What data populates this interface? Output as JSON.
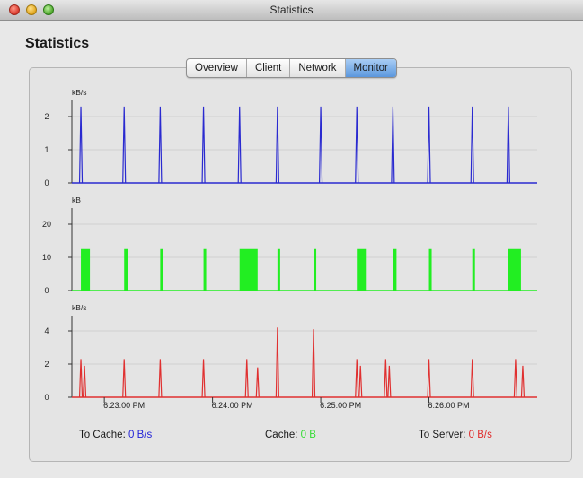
{
  "window": {
    "title": "Statistics"
  },
  "heading": "Statistics",
  "tabs": [
    {
      "label": "Overview",
      "active": false
    },
    {
      "label": "Client",
      "active": false
    },
    {
      "label": "Network",
      "active": false
    },
    {
      "label": "Monitor",
      "active": true
    }
  ],
  "colors": {
    "to_cache": "#2a2ad0",
    "cache": "#22ee22",
    "to_server": "#e03030",
    "tab_active": "#5b97dd"
  },
  "graphs": {
    "upper": {
      "unit": "kB/s",
      "ticks": [
        "0",
        "1",
        "2"
      ],
      "tick_values": [
        0,
        1,
        2
      ],
      "ymax": 2.6,
      "spikes": [
        {
          "t": "6:22:47 PM",
          "value": 2.3
        },
        {
          "t": "6:23:11 PM",
          "value": 2.3
        },
        {
          "t": "6:23:31 PM",
          "value": 2.3
        },
        {
          "t": "6:23:55 PM",
          "value": 2.3
        },
        {
          "t": "6:24:15 PM",
          "value": 2.3
        },
        {
          "t": "6:24:36 PM",
          "value": 2.3
        },
        {
          "t": "6:25:00 PM",
          "value": 2.3
        },
        {
          "t": "6:25:20 PM",
          "value": 2.3
        },
        {
          "t": "6:25:40 PM",
          "value": 2.3
        },
        {
          "t": "6:26:00 PM",
          "value": 2.3
        },
        {
          "t": "6:26:24 PM",
          "value": 2.3
        },
        {
          "t": "6:26:44 PM",
          "value": 2.3
        }
      ]
    },
    "middle": {
      "unit": "kB",
      "ticks": [
        "0",
        "10",
        "20"
      ],
      "tick_values": [
        0,
        10,
        20
      ],
      "ymax": 24,
      "blocks": [
        {
          "start": "6:22:47 PM",
          "end": "6:22:52 PM",
          "value": 12.5
        },
        {
          "start": "6:23:11 PM",
          "end": "6:23:13 PM",
          "value": 12.5
        },
        {
          "start": "6:23:31 PM",
          "end": "6:23:32 PM",
          "value": 12.5
        },
        {
          "start": "6:23:55 PM",
          "end": "6:23:56 PM",
          "value": 12.5
        },
        {
          "start": "6:24:15 PM",
          "end": "6:24:25 PM",
          "value": 12.5
        },
        {
          "start": "6:24:36 PM",
          "end": "6:24:37 PM",
          "value": 12.5
        },
        {
          "start": "6:24:56 PM",
          "end": "6:24:57 PM",
          "value": 12.5
        },
        {
          "start": "6:25:20 PM",
          "end": "6:25:25 PM",
          "value": 12.5
        },
        {
          "start": "6:25:40 PM",
          "end": "6:25:42 PM",
          "value": 12.5
        },
        {
          "start": "6:26:00 PM",
          "end": "6:26:01 PM",
          "value": 12.5
        },
        {
          "start": "6:26:24 PM",
          "end": "6:26:25 PM",
          "value": 12.5
        },
        {
          "start": "6:26:44 PM",
          "end": "6:26:51 PM",
          "value": 12.5
        }
      ]
    },
    "lower": {
      "unit": "kB/s",
      "ticks": [
        "0",
        "2",
        "4"
      ],
      "tick_values": [
        0,
        2,
        4
      ],
      "ymax": 5,
      "spikes": [
        {
          "t": "6:22:47 PM",
          "value": 2.3
        },
        {
          "t": "6:22:49 PM",
          "value": 1.9
        },
        {
          "t": "6:23:11 PM",
          "value": 2.3
        },
        {
          "t": "6:23:31 PM",
          "value": 2.3
        },
        {
          "t": "6:23:55 PM",
          "value": 2.3
        },
        {
          "t": "6:24:19 PM",
          "value": 2.3
        },
        {
          "t": "6:24:25 PM",
          "value": 1.8
        },
        {
          "t": "6:24:36 PM",
          "value": 4.2
        },
        {
          "t": "6:24:56 PM",
          "value": 4.1
        },
        {
          "t": "6:25:20 PM",
          "value": 2.3
        },
        {
          "t": "6:25:22 PM",
          "value": 1.9
        },
        {
          "t": "6:25:36 PM",
          "value": 2.3
        },
        {
          "t": "6:25:38 PM",
          "value": 1.9
        },
        {
          "t": "6:26:00 PM",
          "value": 2.3
        },
        {
          "t": "6:26:24 PM",
          "value": 2.3
        },
        {
          "t": "6:26:48 PM",
          "value": 2.3
        },
        {
          "t": "6:26:52 PM",
          "value": 1.9
        }
      ]
    },
    "time_axis": {
      "start": "6:22:42 PM",
      "end": "6:27:00 PM",
      "labels": [
        "6:23:00 PM",
        "6:24:00 PM",
        "6:25:00 PM",
        "6:26:00 PM"
      ]
    }
  },
  "footer": {
    "to_cache_label": "To Cache:",
    "to_cache_value": "0 B/s",
    "cache_label": "Cache:",
    "cache_value": "0 B",
    "to_server_label": "To Server:",
    "to_server_value": "0 B/s"
  }
}
